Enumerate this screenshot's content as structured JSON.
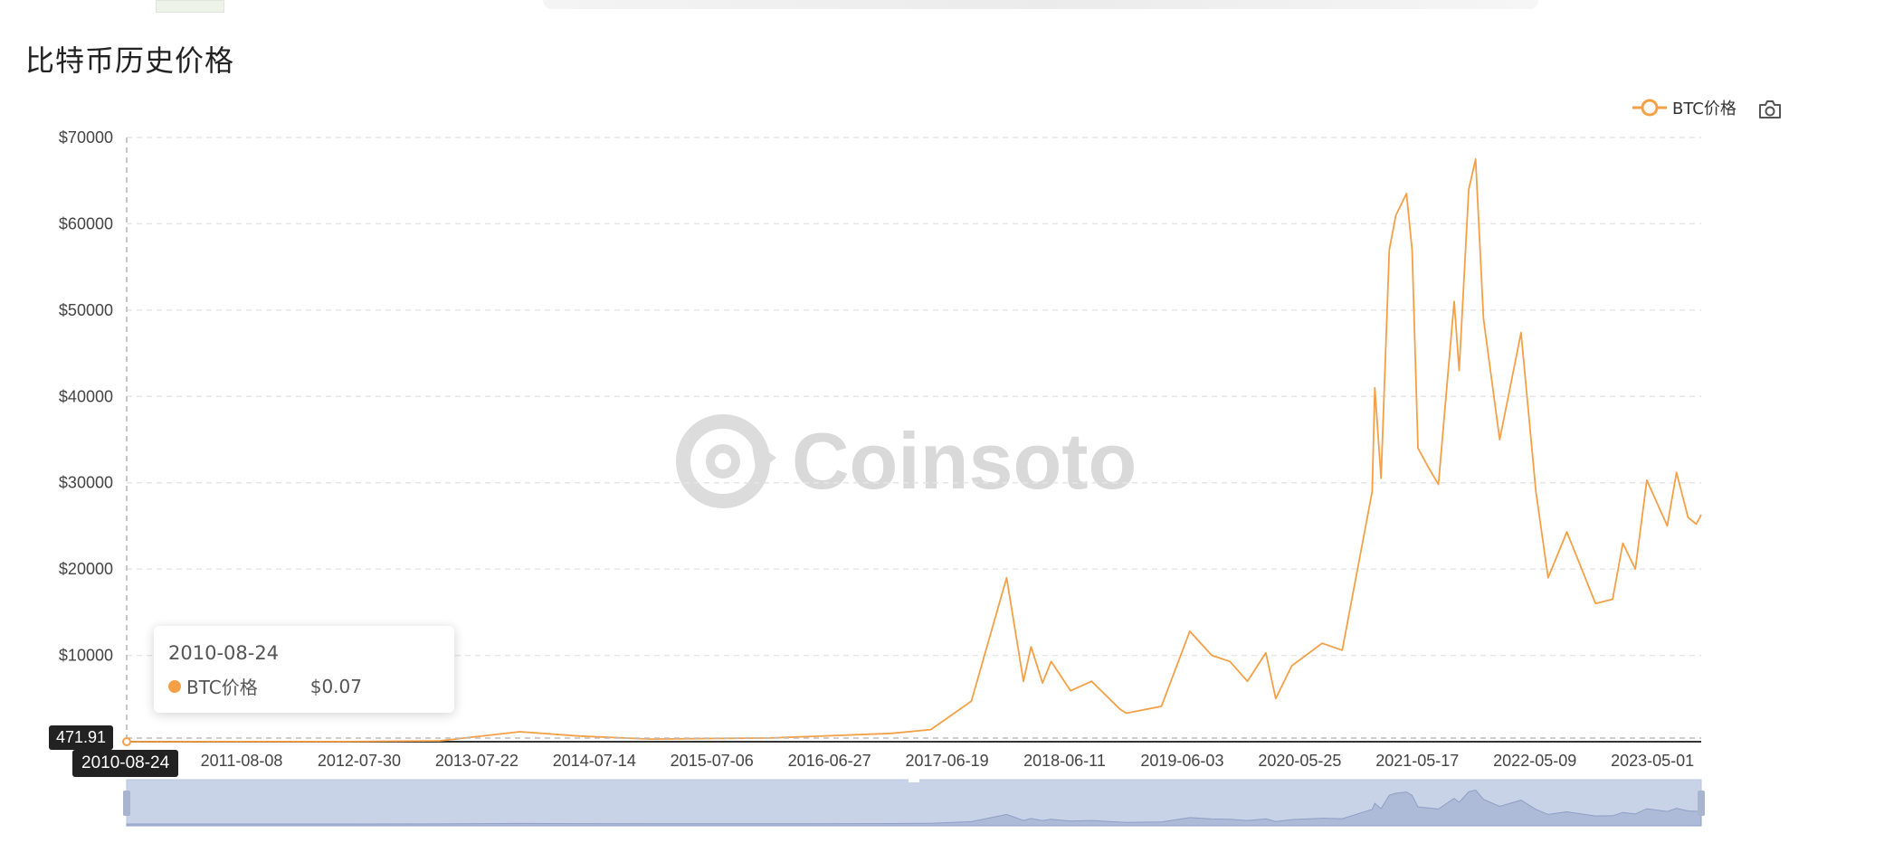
{
  "page": {
    "title": "比特币历史价格"
  },
  "watermark": {
    "text": "Coinsoto",
    "icon": "coinsoto-logo-icon"
  },
  "legend": {
    "label": "BTC价格",
    "icon": "legend-line-circle-icon",
    "color": "#f5a046"
  },
  "toolbar": {
    "save_icon": "camera-icon"
  },
  "tooltip": {
    "date": "2010-08-24",
    "series": "BTC价格",
    "value": "$0.07"
  },
  "axis_pointer": {
    "y_label": "471.91",
    "x_label": "2010-08-24"
  },
  "colors": {
    "line": "#f5a046",
    "grid": "#e6e6e6",
    "axis_text": "#444",
    "slider_fill": "#c9d3e8"
  },
  "chart_data": {
    "type": "line",
    "title": "比特币历史价格",
    "series": [
      {
        "name": "BTC价格",
        "x": [
          "2010-08-24",
          "2011-06-01",
          "2012-06-01",
          "2013-04-01",
          "2013-11-30",
          "2014-06-01",
          "2015-01-01",
          "2016-01-01",
          "2016-12-31",
          "2017-05-01",
          "2017-09-01",
          "2017-12-17",
          "2018-02-06",
          "2018-03-01",
          "2018-04-05",
          "2018-05-01",
          "2018-06-29",
          "2018-09-01",
          "2018-11-25",
          "2018-12-15",
          "2019-04-01",
          "2019-06-26",
          "2019-09-01",
          "2019-10-26",
          "2019-12-18",
          "2020-02-12",
          "2020-03-13",
          "2020-05-01",
          "2020-08-01",
          "2020-10-01",
          "2020-12-31",
          "2021-01-08",
          "2021-01-27",
          "2021-02-21",
          "2021-03-13",
          "2021-04-14",
          "2021-05-01",
          "2021-05-19",
          "2021-06-21",
          "2021-07-20",
          "2021-09-06",
          "2021-09-21",
          "2021-10-20",
          "2021-11-10",
          "2021-12-04",
          "2022-01-22",
          "2022-03-28",
          "2022-05-12",
          "2022-06-18",
          "2022-08-14",
          "2022-11-09",
          "2022-12-31",
          "2023-01-31",
          "2023-03-10",
          "2023-04-14",
          "2023-06-15",
          "2023-07-13",
          "2023-08-17",
          "2023-09-11",
          "2023-09-26"
        ],
        "values": [
          0.07,
          15,
          6,
          100,
          1150,
          650,
          300,
          430,
          960,
          1400,
          4700,
          19000,
          7000,
          11000,
          6800,
          9300,
          5900,
          7000,
          3800,
          3300,
          4100,
          12800,
          10000,
          9300,
          7000,
          10300,
          5000,
          8800,
          11400,
          10600,
          29000,
          41000,
          30500,
          57000,
          61000,
          63500,
          57000,
          34000,
          31700,
          29800,
          51000,
          43000,
          64000,
          67500,
          49000,
          35000,
          47400,
          29000,
          19000,
          24300,
          16000,
          16500,
          23000,
          20000,
          30300,
          25000,
          31200,
          26000,
          25200,
          26300
        ]
      }
    ],
    "x_tick_labels": [
      "2010-08-24",
      "2011-08-08",
      "2012-07-30",
      "2013-07-22",
      "2014-07-14",
      "2015-07-06",
      "2016-06-27",
      "2017-06-19",
      "2018-06-11",
      "2019-06-03",
      "2020-05-25",
      "2021-05-17",
      "2022-05-09",
      "2023-05-01"
    ],
    "y_tick_labels": [
      "$10000",
      "$20000",
      "$30000",
      "$40000",
      "$50000",
      "$60000",
      "$70000"
    ],
    "y_ticks": [
      10000,
      20000,
      30000,
      40000,
      50000,
      60000,
      70000
    ],
    "ylim": [
      0,
      70000
    ],
    "xlim": [
      "2010-08-24",
      "2023-09-26"
    ],
    "grid": true,
    "legend_position": "top-right",
    "datazoom_slider": true
  }
}
